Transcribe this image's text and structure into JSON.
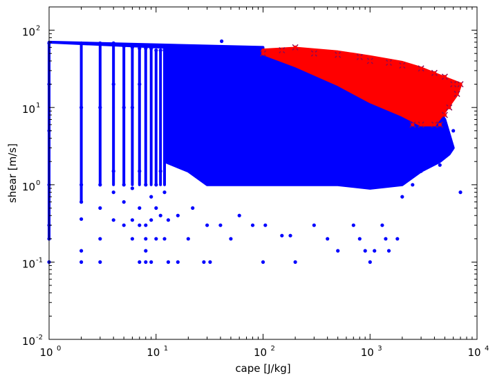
{
  "chart_data": {
    "type": "scatter",
    "title": "",
    "xlabel": "cape [J/kg]",
    "ylabel": "shear [m/s]",
    "xscale": "log",
    "yscale": "log",
    "xlim": [
      1,
      10000
    ],
    "ylim": [
      0.01,
      200
    ],
    "grid": false,
    "legend": "none",
    "x_ticks": [
      {
        "value": 1,
        "base": "10",
        "exp": "0"
      },
      {
        "value": 10,
        "base": "10",
        "exp": "1"
      },
      {
        "value": 100,
        "base": "10",
        "exp": "2"
      },
      {
        "value": 1000,
        "base": "10",
        "exp": "3"
      },
      {
        "value": 10000,
        "base": "10",
        "exp": "4"
      }
    ],
    "y_ticks": [
      {
        "value": 0.01,
        "base": "10",
        "exp": "-2"
      },
      {
        "value": 0.1,
        "base": "10",
        "exp": "-1"
      },
      {
        "value": 1,
        "base": "10",
        "exp": "0"
      },
      {
        "value": 10,
        "base": "10",
        "exp": "1"
      },
      {
        "value": 100,
        "base": "10",
        "exp": "2"
      }
    ],
    "series": [
      {
        "color": "#0000ff",
        "marker": "circle",
        "points": [
          [
            1,
            0.1
          ],
          [
            1,
            0.2
          ],
          [
            1,
            0.3
          ],
          [
            1,
            1
          ],
          [
            1,
            5
          ],
          [
            1,
            20
          ],
          [
            1,
            68
          ],
          [
            2,
            0.1
          ],
          [
            2,
            0.14
          ],
          [
            2,
            0.36
          ],
          [
            2,
            0.6
          ],
          [
            2,
            1
          ],
          [
            2,
            10
          ],
          [
            2,
            68
          ],
          [
            3,
            0.1
          ],
          [
            3,
            0.2
          ],
          [
            3,
            0.5
          ],
          [
            3,
            1
          ],
          [
            3,
            10
          ],
          [
            3,
            68
          ],
          [
            4,
            0.35
          ],
          [
            4,
            0.8
          ],
          [
            4,
            1.5
          ],
          [
            4,
            20
          ],
          [
            4,
            68
          ],
          [
            5,
            0.3
          ],
          [
            5,
            0.6
          ],
          [
            5,
            1
          ],
          [
            5,
            10
          ],
          [
            5,
            62
          ],
          [
            6,
            0.2
          ],
          [
            6,
            0.35
          ],
          [
            6,
            0.9
          ],
          [
            6,
            10
          ],
          [
            6,
            60
          ],
          [
            7,
            0.1
          ],
          [
            7,
            0.3
          ],
          [
            7,
            0.5
          ],
          [
            7,
            1.5
          ],
          [
            7,
            20
          ],
          [
            7,
            58
          ],
          [
            8,
            0.1
          ],
          [
            8,
            0.14
          ],
          [
            8,
            0.2
          ],
          [
            8,
            0.3
          ],
          [
            8,
            1
          ],
          [
            8,
            58
          ],
          [
            9,
            0.1
          ],
          [
            9,
            0.35
          ],
          [
            9,
            0.7
          ],
          [
            9,
            58
          ],
          [
            10,
            0.2
          ],
          [
            10,
            0.5
          ],
          [
            10,
            1
          ],
          [
            10,
            55
          ],
          [
            11,
            0.4
          ],
          [
            11,
            1.5
          ],
          [
            11,
            55
          ],
          [
            12,
            0.2
          ],
          [
            12,
            0.8
          ],
          [
            12,
            55
          ],
          [
            13,
            0.1
          ],
          [
            13,
            0.35
          ],
          [
            16,
            0.1
          ],
          [
            16,
            0.4
          ],
          [
            20,
            0.2
          ],
          [
            22,
            0.5
          ],
          [
            28,
            0.1
          ],
          [
            30,
            0.3
          ],
          [
            32,
            0.1
          ],
          [
            40,
            0.3
          ],
          [
            41,
            72
          ],
          [
            50,
            0.2
          ],
          [
            60,
            0.4
          ],
          [
            80,
            0.3
          ],
          [
            100,
            0.1
          ],
          [
            105,
            0.3
          ],
          [
            150,
            0.22
          ],
          [
            180,
            0.22
          ],
          [
            200,
            0.1
          ],
          [
            300,
            0.3
          ],
          [
            400,
            0.2
          ],
          [
            500,
            0.14
          ],
          [
            700,
            0.3
          ],
          [
            800,
            0.2
          ],
          [
            900,
            0.14
          ],
          [
            1000,
            0.1
          ],
          [
            1100,
            0.14
          ],
          [
            1300,
            0.3
          ],
          [
            1400,
            0.2
          ],
          [
            1500,
            0.14
          ],
          [
            1800,
            0.2
          ],
          [
            2000,
            0.7
          ],
          [
            2500,
            1
          ],
          [
            3000,
            1.5
          ],
          [
            3500,
            3
          ],
          [
            4000,
            4
          ],
          [
            4500,
            2.6
          ],
          [
            5000,
            3
          ],
          [
            6000,
            5
          ],
          [
            7000,
            0.8
          ],
          [
            4500,
            1.8
          ]
        ]
      },
      {
        "color": "#ff0000",
        "marker": "x",
        "points": [
          [
            100,
            50
          ],
          [
            150,
            55
          ],
          [
            200,
            60
          ],
          [
            300,
            50
          ],
          [
            500,
            48
          ],
          [
            800,
            45
          ],
          [
            1000,
            40
          ],
          [
            1500,
            38
          ],
          [
            2000,
            35
          ],
          [
            3000,
            32
          ],
          [
            4000,
            28
          ],
          [
            5000,
            25
          ],
          [
            6000,
            20
          ],
          [
            7000,
            20
          ],
          [
            6500,
            15
          ],
          [
            5500,
            10
          ],
          [
            5000,
            8
          ],
          [
            4500,
            6
          ],
          [
            4000,
            6
          ],
          [
            3000,
            6
          ],
          [
            2500,
            6
          ]
        ]
      }
    ],
    "regions": [
      {
        "color": "#0000ff",
        "polygon": [
          [
            1,
            70
          ],
          [
            100,
            60
          ],
          [
            100,
            55
          ],
          [
            1000,
            40
          ],
          [
            2000,
            32
          ],
          [
            3000,
            20
          ],
          [
            5000,
            7
          ],
          [
            6000,
            3
          ],
          [
            5500,
            2.5
          ],
          [
            4500,
            2
          ],
          [
            3000,
            1.5
          ],
          [
            2000,
            1
          ],
          [
            1000,
            0.9
          ],
          [
            500,
            1
          ],
          [
            200,
            1
          ],
          [
            100,
            1
          ],
          [
            50,
            1
          ],
          [
            30,
            1
          ],
          [
            20,
            1.5
          ],
          [
            12,
            2
          ],
          [
            12,
            60
          ]
        ]
      },
      {
        "color": "#ff0000",
        "polygon": [
          [
            100,
            55
          ],
          [
            200,
            58
          ],
          [
            500,
            52
          ],
          [
            1000,
            45
          ],
          [
            2000,
            38
          ],
          [
            3000,
            32
          ],
          [
            5000,
            24
          ],
          [
            7000,
            20
          ],
          [
            6500,
            15
          ],
          [
            5000,
            9
          ],
          [
            4000,
            6
          ],
          [
            3000,
            6
          ],
          [
            2000,
            8
          ],
          [
            1000,
            12
          ],
          [
            500,
            20
          ],
          [
            200,
            35
          ],
          [
            100,
            50
          ]
        ]
      }
    ],
    "vertical_streaks": [
      {
        "x": 1,
        "y_range": [
          0.2,
          70
        ]
      },
      {
        "x": 2,
        "y_range": [
          0.6,
          68
        ]
      },
      {
        "x": 3,
        "y_range": [
          1,
          68
        ]
      },
      {
        "x": 4,
        "y_range": [
          1,
          68
        ]
      },
      {
        "x": 5,
        "y_range": [
          1,
          62
        ]
      },
      {
        "x": 6,
        "y_range": [
          1,
          60
        ]
      },
      {
        "x": 7,
        "y_range": [
          1,
          58
        ]
      },
      {
        "x": 8,
        "y_range": [
          1,
          58
        ]
      },
      {
        "x": 9,
        "y_range": [
          1,
          58
        ]
      },
      {
        "x": 10,
        "y_range": [
          1,
          55
        ]
      },
      {
        "x": 11,
        "y_range": [
          1,
          55
        ]
      },
      {
        "x": 12,
        "y_range": [
          1,
          55
        ]
      }
    ]
  }
}
